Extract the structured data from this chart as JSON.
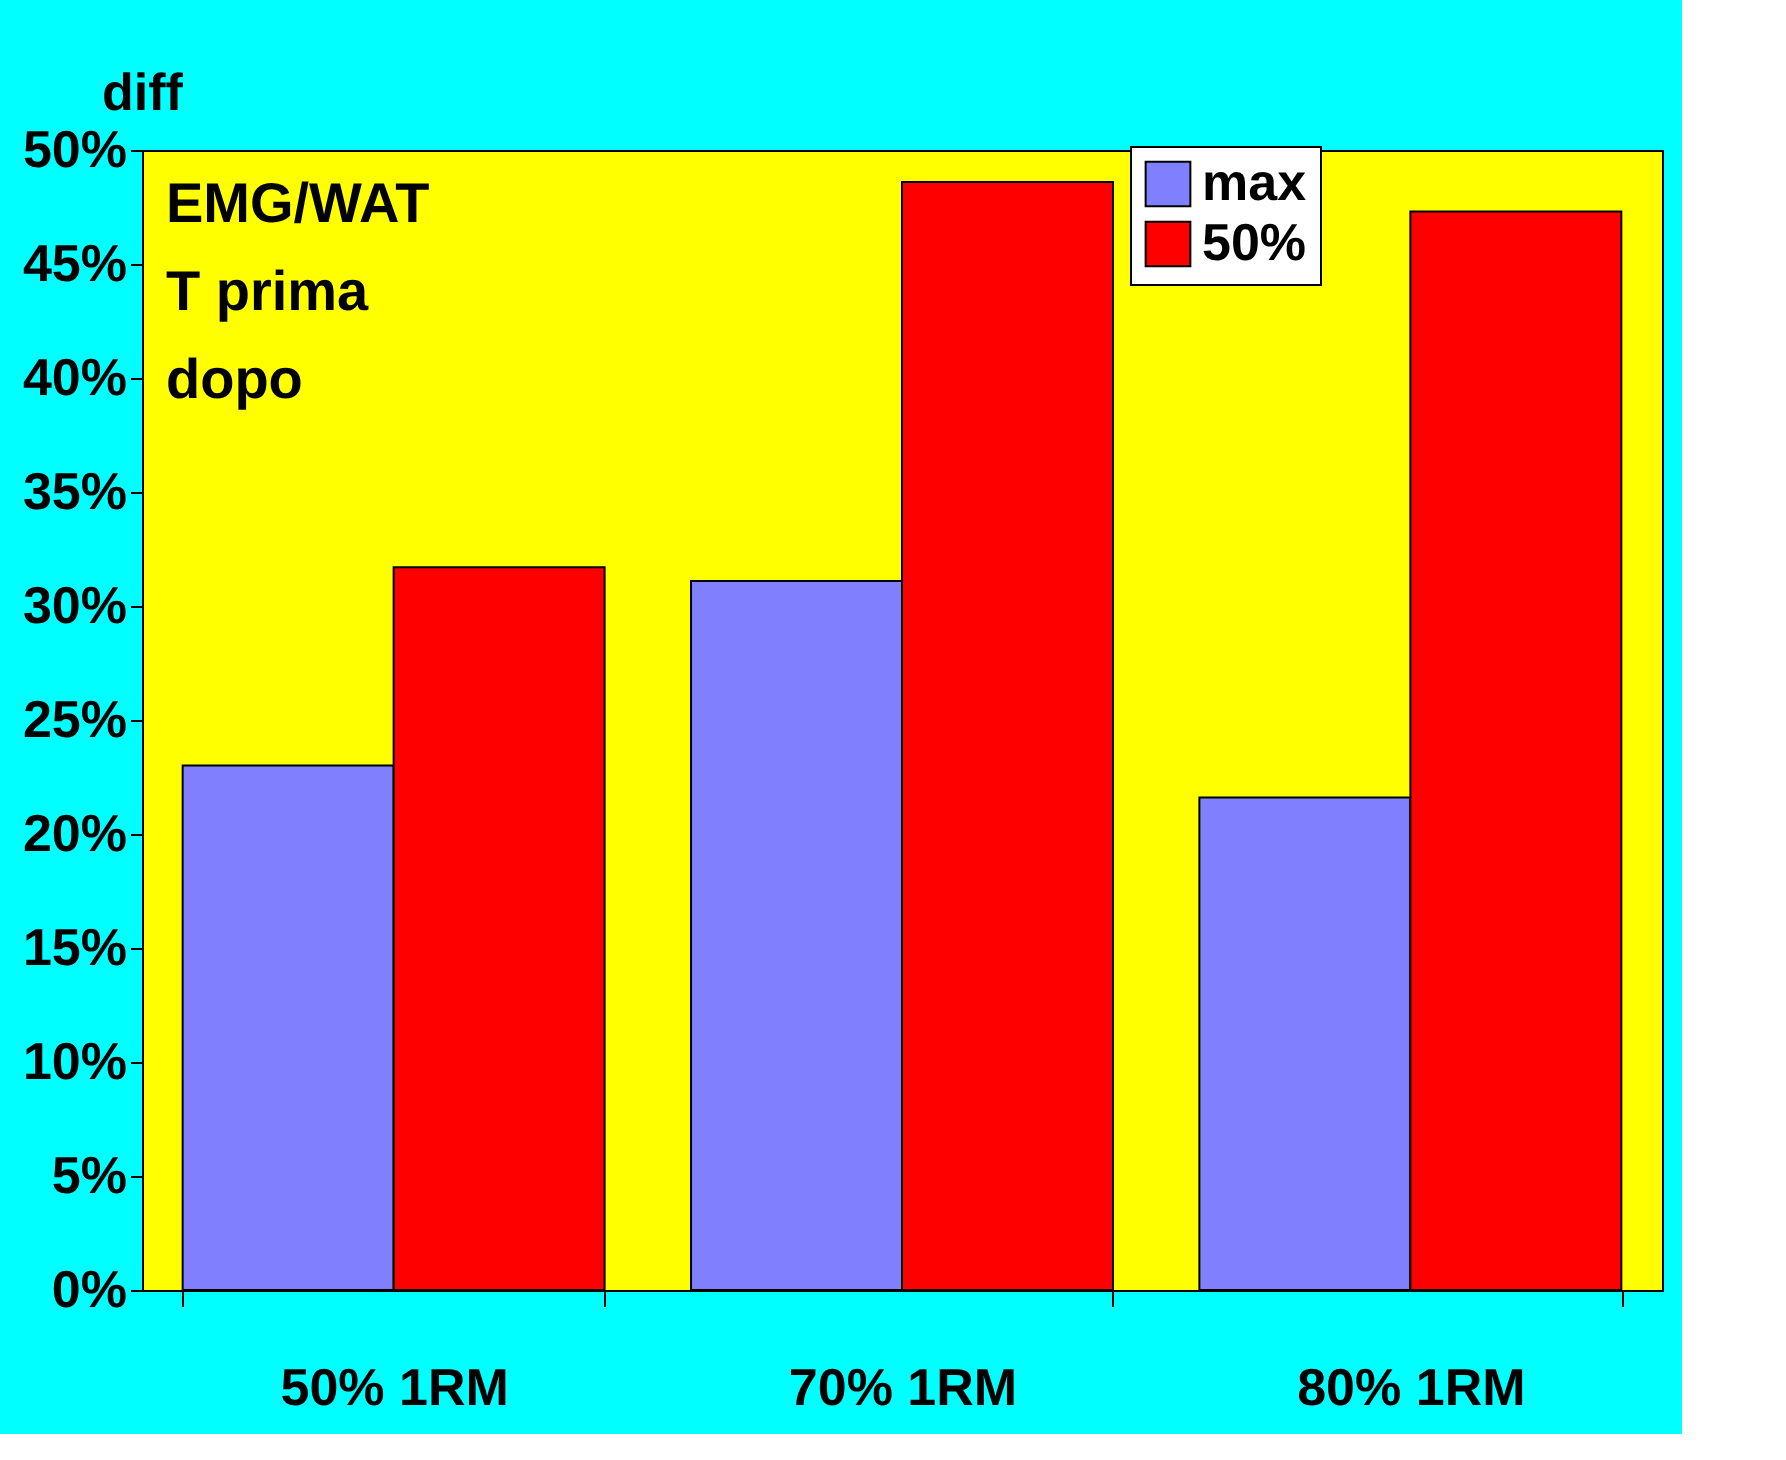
{
  "chart_data": {
    "type": "bar",
    "title": "diff",
    "annotations": [
      "EMG/WAT",
      "T prima",
      " dopo"
    ],
    "categories": [
      "50% 1RM",
      "70% 1RM",
      "80% 1RM"
    ],
    "series": [
      {
        "name": "max",
        "color": "#8080ff",
        "values": [
          23.0,
          31.1,
          21.6
        ]
      },
      {
        "name": "50%",
        "color": "#ff0000",
        "values": [
          31.7,
          48.6,
          47.3
        ]
      }
    ],
    "ylim": [
      0,
      50
    ],
    "yticks": [
      {
        "value": 0,
        "label": "0%"
      },
      {
        "value": 5,
        "label": "5%"
      },
      {
        "value": 10,
        "label": "10%"
      },
      {
        "value": 15,
        "label": "15%"
      },
      {
        "value": 20,
        "label": "20%"
      },
      {
        "value": 25,
        "label": "25%"
      },
      {
        "value": 30,
        "label": "30%"
      },
      {
        "value": 35,
        "label": "35%"
      },
      {
        "value": 40,
        "label": "40%"
      },
      {
        "value": 45,
        "label": "45%"
      },
      {
        "value": 50,
        "label": "50%"
      }
    ],
    "grid": false,
    "legend": "top right"
  }
}
